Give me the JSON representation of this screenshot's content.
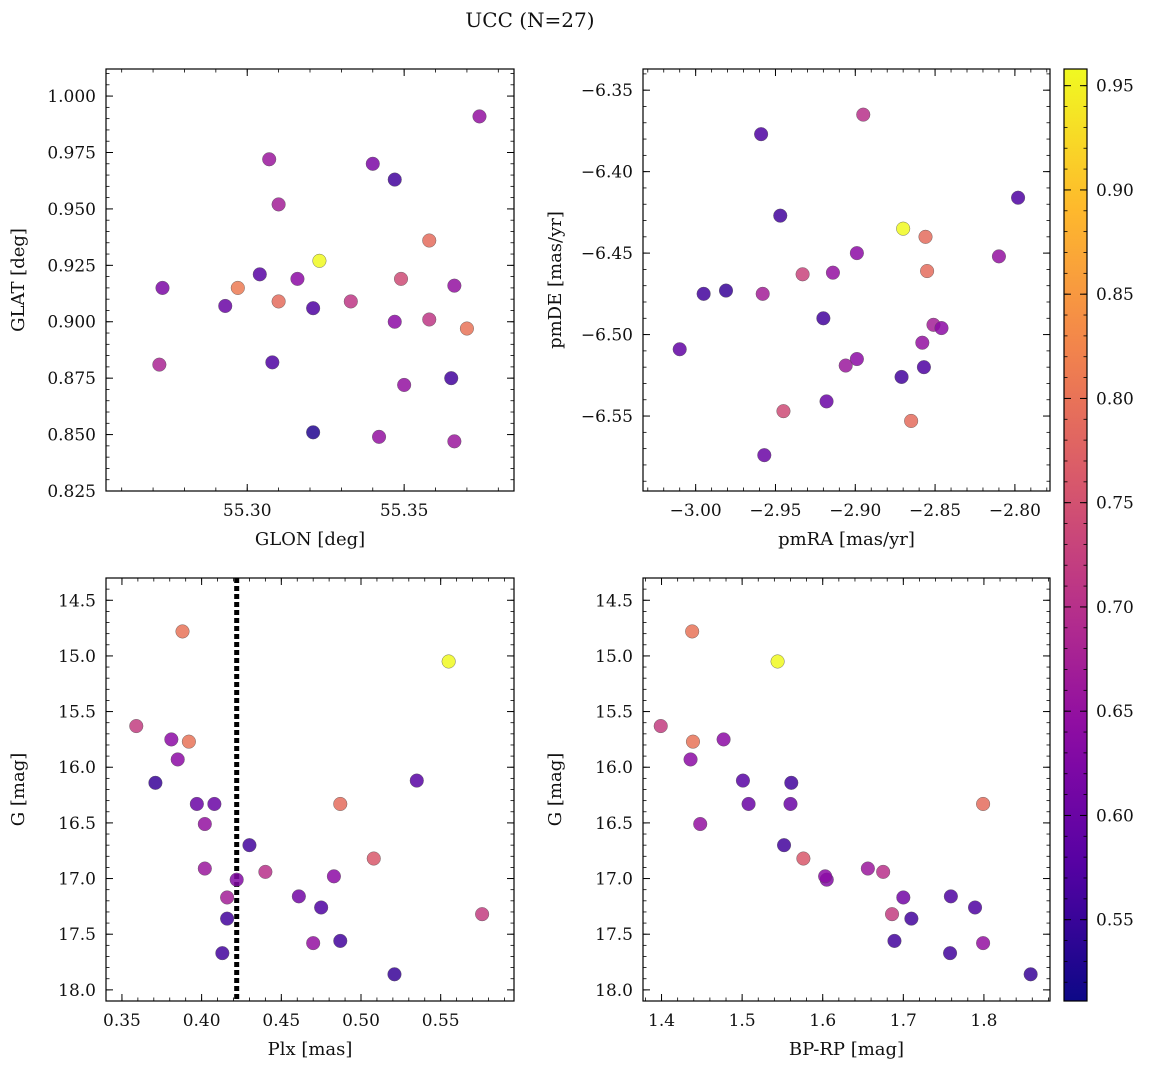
{
  "figure": {
    "title": "UCC (N=27)"
  },
  "colorbar": {
    "vmin": 0.511,
    "vmax": 0.958,
    "ticks": [
      0.55,
      0.6,
      0.65,
      0.7,
      0.75,
      0.8,
      0.85,
      0.9,
      0.95
    ],
    "tick_labels": [
      "0.55",
      "0.60",
      "0.65",
      "0.70",
      "0.75",
      "0.80",
      "0.85",
      "0.90",
      "0.95"
    ],
    "colormap": "plasma"
  },
  "chart_data": [
    {
      "type": "scatter",
      "title": "",
      "xlabel": "GLON [deg]",
      "ylabel": "GLAT [deg]",
      "xlim": [
        55.255,
        55.385
      ],
      "ylim": [
        0.825,
        1.012
      ],
      "xticks": [
        55.3,
        55.35
      ],
      "xtick_labels": [
        "55.30",
        "55.35"
      ],
      "yticks": [
        0.825,
        0.85,
        0.875,
        0.9,
        0.925,
        0.95,
        0.975,
        1.0
      ],
      "ytick_labels": [
        "0.825",
        "0.850",
        "0.875",
        "0.900",
        "0.925",
        "0.950",
        "0.975",
        "1.000"
      ],
      "x": [
        55.374,
        55.307,
        55.34,
        55.347,
        55.31,
        55.323,
        55.358,
        55.273,
        55.304,
        55.316,
        55.349,
        55.297,
        55.366,
        55.293,
        55.31,
        55.333,
        55.321,
        55.358,
        55.37,
        55.347,
        55.272,
        55.308,
        55.365,
        55.35,
        55.321,
        55.342,
        55.366
      ],
      "y": [
        0.991,
        0.972,
        0.97,
        0.963,
        0.952,
        0.927,
        0.936,
        0.915,
        0.921,
        0.919,
        0.919,
        0.915,
        0.916,
        0.907,
        0.909,
        0.909,
        0.906,
        0.901,
        0.897,
        0.9,
        0.881,
        0.882,
        0.875,
        0.872,
        0.851,
        0.849,
        0.847
      ],
      "color_values": [
        0.65,
        0.66,
        0.62,
        0.56,
        0.67,
        0.958,
        0.79,
        0.62,
        0.58,
        0.64,
        0.74,
        0.81,
        0.65,
        0.6,
        0.79,
        0.71,
        0.57,
        0.71,
        0.8,
        0.64,
        0.68,
        0.57,
        0.56,
        0.65,
        0.53,
        0.65,
        0.66
      ]
    },
    {
      "type": "scatter",
      "title": "",
      "xlabel": "pmRA [mas/yr]",
      "ylabel": "pmDE [mas/yr]",
      "xlim": [
        -3.033,
        -2.778
      ],
      "ylim": [
        -6.596,
        -6.337
      ],
      "xticks": [
        -3.0,
        -2.95,
        -2.9,
        -2.85,
        -2.8
      ],
      "xtick_labels": [
        "−3.00",
        "−2.95",
        "−2.90",
        "−2.85",
        "−2.80"
      ],
      "yticks": [
        -6.55,
        -6.5,
        -6.45,
        -6.4,
        -6.35
      ],
      "ytick_labels": [
        "−6.55",
        "−6.50",
        "−6.45",
        "−6.40",
        "−6.35"
      ],
      "x": [
        -2.895,
        -2.959,
        -2.798,
        -2.947,
        -2.87,
        -2.856,
        -2.81,
        -2.899,
        -2.855,
        -2.933,
        -2.914,
        -2.995,
        -2.981,
        -2.958,
        -2.851,
        -2.846,
        -2.92,
        -3.01,
        -2.858,
        -2.899,
        -2.906,
        -2.857,
        -2.871,
        -2.918,
        -2.945,
        -2.865,
        -2.957
      ],
      "y": [
        -6.365,
        -6.377,
        -6.416,
        -6.427,
        -6.435,
        -6.44,
        -6.452,
        -6.45,
        -6.461,
        -6.463,
        -6.462,
        -6.475,
        -6.473,
        -6.475,
        -6.494,
        -6.496,
        -6.49,
        -6.509,
        -6.505,
        -6.515,
        -6.519,
        -6.52,
        -6.526,
        -6.541,
        -6.547,
        -6.553,
        -6.574
      ],
      "color_values": [
        0.7,
        0.57,
        0.57,
        0.56,
        0.958,
        0.79,
        0.65,
        0.64,
        0.79,
        0.73,
        0.65,
        0.56,
        0.55,
        0.67,
        0.67,
        0.64,
        0.56,
        0.59,
        0.65,
        0.64,
        0.66,
        0.57,
        0.56,
        0.6,
        0.74,
        0.79,
        0.6
      ]
    },
    {
      "type": "scatter",
      "title": "",
      "xlabel": "Plx [mas]",
      "ylabel": "G [mag]",
      "xlim": [
        0.34,
        0.596
      ],
      "ylim": [
        18.1,
        14.3
      ],
      "y_inverted": true,
      "xticks": [
        0.35,
        0.4,
        0.45,
        0.5,
        0.55
      ],
      "xtick_labels": [
        "0.35",
        "0.40",
        "0.45",
        "0.50",
        "0.55"
      ],
      "yticks": [
        14.5,
        15.0,
        15.5,
        16.0,
        16.5,
        17.0,
        17.5,
        18.0
      ],
      "ytick_labels": [
        "14.5",
        "15.0",
        "15.5",
        "16.0",
        "16.5",
        "17.0",
        "17.5",
        "18.0"
      ],
      "vline": {
        "x": 0.422,
        "style": "dotted"
      },
      "x": [
        0.388,
        0.555,
        0.359,
        0.381,
        0.392,
        0.385,
        0.535,
        0.371,
        0.397,
        0.408,
        0.487,
        0.402,
        0.43,
        0.508,
        0.402,
        0.44,
        0.422,
        0.483,
        0.461,
        0.416,
        0.475,
        0.576,
        0.416,
        0.487,
        0.47,
        0.413,
        0.521
      ],
      "y": [
        14.78,
        15.05,
        15.63,
        15.75,
        15.77,
        15.93,
        16.12,
        16.14,
        16.33,
        16.33,
        16.33,
        16.51,
        16.7,
        16.82,
        16.91,
        16.94,
        17.01,
        16.98,
        17.16,
        17.17,
        17.26,
        17.32,
        17.36,
        17.56,
        17.58,
        17.67,
        17.86
      ],
      "color_values": [
        0.8,
        0.958,
        0.72,
        0.64,
        0.8,
        0.64,
        0.58,
        0.55,
        0.6,
        0.6,
        0.79,
        0.65,
        0.56,
        0.76,
        0.66,
        0.7,
        0.63,
        0.64,
        0.61,
        0.67,
        0.57,
        0.72,
        0.56,
        0.56,
        0.65,
        0.56,
        0.55
      ]
    },
    {
      "type": "scatter",
      "title": "",
      "xlabel": "BP-RP [mag]",
      "ylabel": "G [mag]",
      "xlim": [
        1.377,
        1.882
      ],
      "ylim": [
        18.1,
        14.3
      ],
      "y_inverted": true,
      "xticks": [
        1.4,
        1.5,
        1.6,
        1.7,
        1.8
      ],
      "xtick_labels": [
        "1.4",
        "1.5",
        "1.6",
        "1.7",
        "1.8"
      ],
      "yticks": [
        14.5,
        15.0,
        15.5,
        16.0,
        16.5,
        17.0,
        17.5,
        18.0
      ],
      "ytick_labels": [
        "14.5",
        "15.0",
        "15.5",
        "16.0",
        "16.5",
        "17.0",
        "17.5",
        "18.0"
      ],
      "x": [
        1.438,
        1.544,
        1.399,
        1.477,
        1.439,
        1.436,
        1.561,
        1.501,
        1.508,
        1.56,
        1.799,
        1.448,
        1.552,
        1.576,
        1.656,
        1.675,
        1.605,
        1.603,
        1.759,
        1.7,
        1.789,
        1.686,
        1.71,
        1.689,
        1.799,
        1.758,
        1.858
      ],
      "y": [
        14.78,
        15.05,
        15.63,
        15.75,
        15.77,
        15.93,
        16.14,
        16.12,
        16.33,
        16.33,
        16.33,
        16.51,
        16.7,
        16.82,
        16.91,
        16.94,
        17.01,
        16.98,
        17.16,
        17.17,
        17.26,
        17.32,
        17.36,
        17.56,
        17.58,
        17.67,
        17.86
      ],
      "color_values": [
        0.8,
        0.958,
        0.72,
        0.64,
        0.8,
        0.64,
        0.56,
        0.58,
        0.6,
        0.6,
        0.79,
        0.65,
        0.56,
        0.76,
        0.66,
        0.7,
        0.63,
        0.64,
        0.57,
        0.61,
        0.57,
        0.72,
        0.56,
        0.56,
        0.65,
        0.56,
        0.55
      ]
    }
  ]
}
